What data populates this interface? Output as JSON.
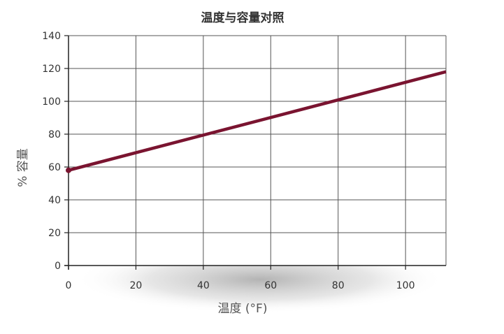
{
  "chart_data": {
    "type": "line",
    "title": "温度与容量对照",
    "xlabel": "温度 (°F)",
    "ylabel": "% 容量",
    "xlim": [
      0,
      112
    ],
    "ylim": [
      0,
      140
    ],
    "x_ticks": [
      0,
      20,
      40,
      60,
      80,
      100
    ],
    "y_ticks": [
      0,
      20,
      40,
      60,
      80,
      100,
      120,
      140
    ],
    "grid": true,
    "series": [
      {
        "x": [
          0,
          112
        ],
        "y": [
          58,
          118
        ],
        "color": "#7a1430"
      }
    ],
    "colors": {
      "line": "#7a1430",
      "grid": "#555555",
      "axis": "#222222",
      "text": "#333333",
      "label": "#555555"
    }
  }
}
